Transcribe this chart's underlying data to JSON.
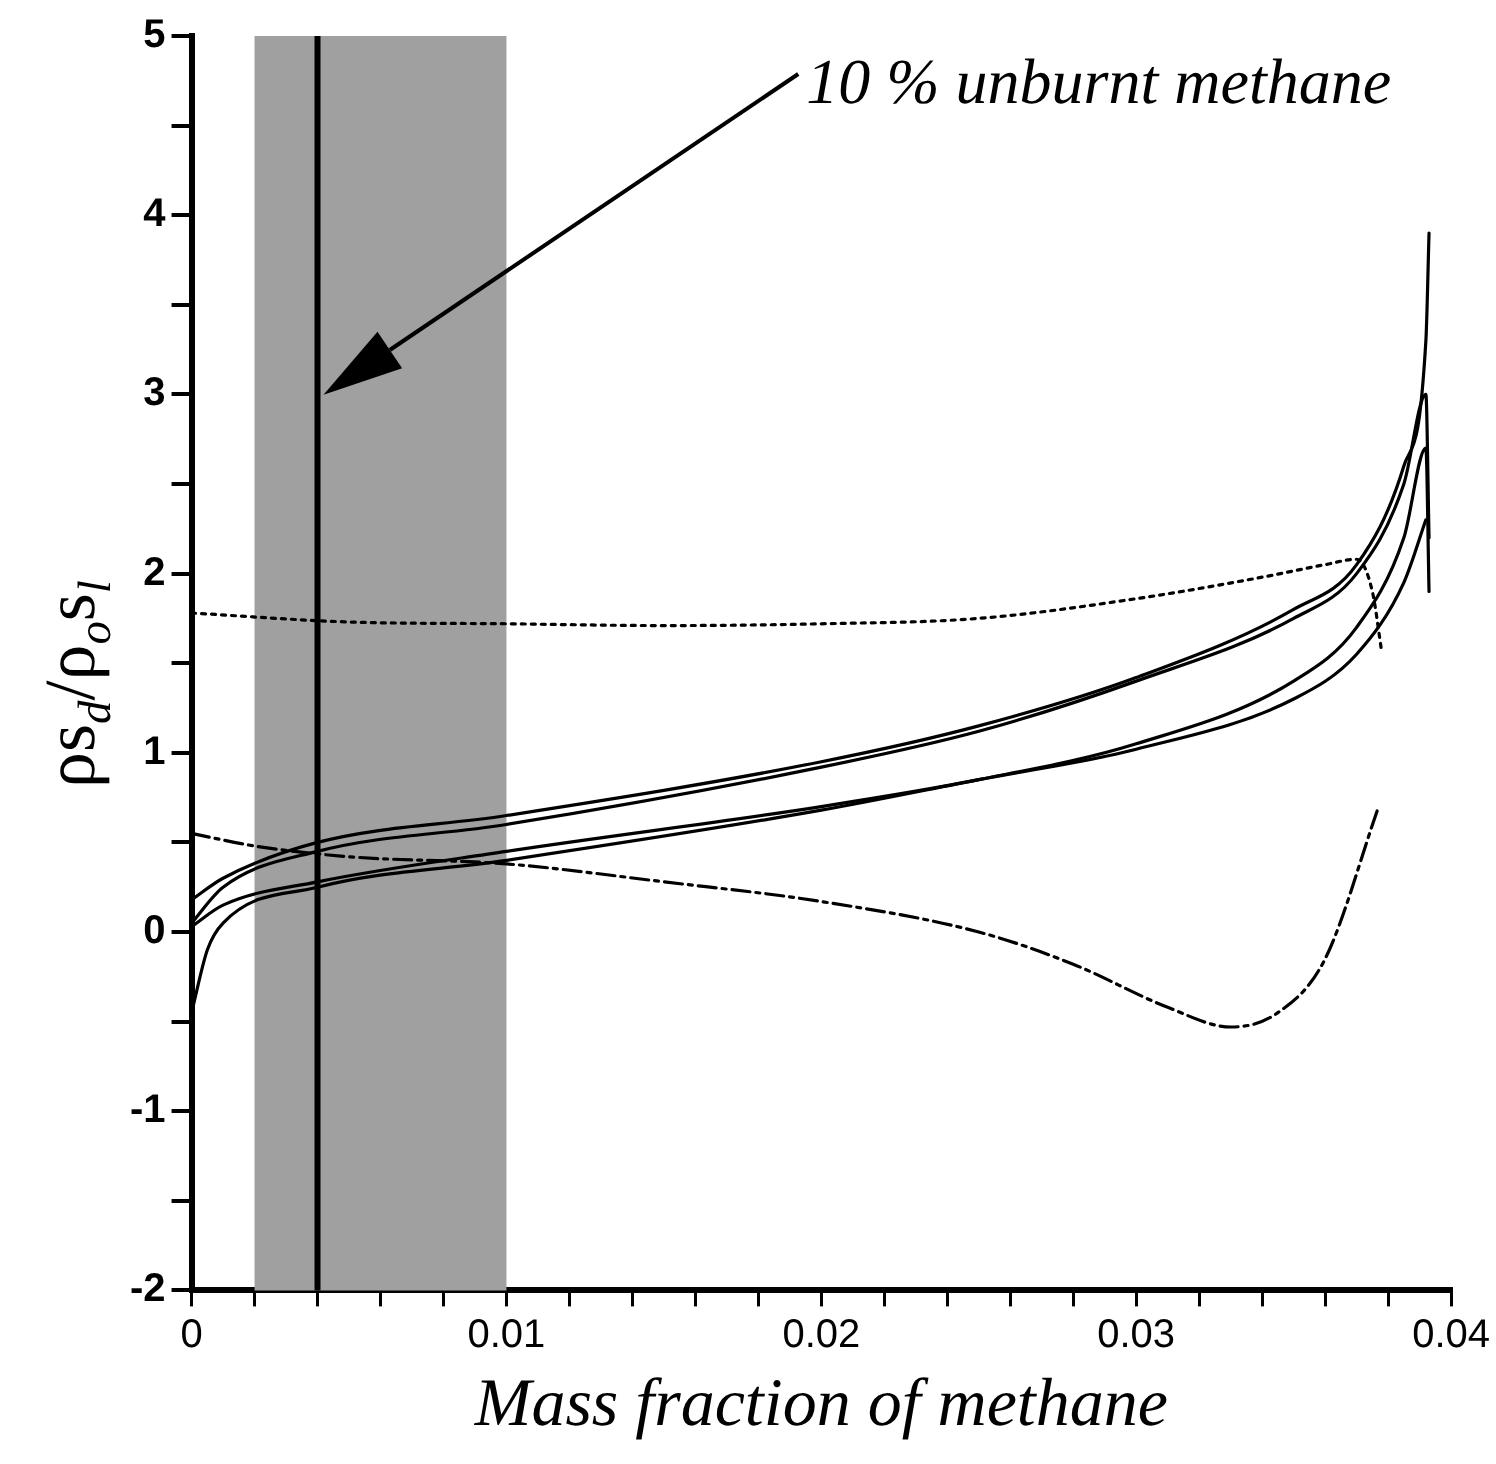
{
  "chart_data": {
    "type": "line",
    "xlabel": "Mass fraction of methane",
    "ylabel": "ρs$_{d}$/ρ$_{o}$s$_{l}$",
    "xlim": [
      0,
      0.04
    ],
    "ylim": [
      -2,
      5
    ],
    "xticks": [
      0,
      {
        "value": 0.002,
        "label": null
      },
      {
        "value": 0.004,
        "label": null
      },
      {
        "value": 0.006,
        "label": null
      },
      {
        "value": 0.008,
        "label": null
      },
      0.01,
      {
        "value": 0.012,
        "label": null
      },
      {
        "value": 0.014,
        "label": null
      },
      {
        "value": 0.016,
        "label": null
      },
      {
        "value": 0.018,
        "label": null
      },
      0.02,
      {
        "value": 0.022,
        "label": null
      },
      {
        "value": 0.024,
        "label": null
      },
      {
        "value": 0.026,
        "label": null
      },
      {
        "value": 0.028,
        "label": null
      },
      0.03,
      {
        "value": 0.032,
        "label": null
      },
      {
        "value": 0.034,
        "label": null
      },
      {
        "value": 0.036,
        "label": null
      },
      {
        "value": 0.038,
        "label": null
      },
      0.04
    ],
    "yticks": [
      -2,
      {
        "value": -1.5,
        "label": null
      },
      -1,
      {
        "value": -0.5,
        "label": null
      },
      0,
      {
        "value": 0.5,
        "label": null
      },
      1,
      {
        "value": 1.5,
        "label": null
      },
      2,
      {
        "value": 2.5,
        "label": null
      },
      3,
      {
        "value": 3.5,
        "label": null
      },
      4,
      {
        "value": 4.5,
        "label": null
      },
      5
    ],
    "grid": false,
    "legend": false,
    "marker": "none",
    "series": [
      {
        "color": "#000000",
        "line_style": "solid",
        "x": [
          0,
          0.001,
          0.004,
          0.01,
          0.02,
          0.025,
          0.03,
          0.035,
          0.037,
          0.0385,
          0.0392,
          0.0393
        ],
        "values": [
          0.18,
          0.3,
          0.5,
          0.65,
          0.95,
          1.15,
          1.42,
          1.8,
          2.05,
          2.6,
          3.3,
          3.9
        ]
      },
      {
        "color": "#000000",
        "line_style": "solid",
        "x": [
          0,
          0.001,
          0.004,
          0.01,
          0.02,
          0.025,
          0.03,
          0.035,
          0.037,
          0.0385,
          0.0392,
          0.0393
        ],
        "values": [
          0.05,
          0.25,
          0.45,
          0.6,
          0.92,
          1.12,
          1.4,
          1.75,
          2.0,
          2.5,
          3.0,
          2.2
        ]
      },
      {
        "color": "#000000",
        "line_style": "solid",
        "x": [
          0,
          0.001,
          0.004,
          0.01,
          0.02,
          0.025,
          0.03,
          0.035,
          0.037,
          0.0385,
          0.0392,
          0.0393
        ],
        "values": [
          0.03,
          0.15,
          0.28,
          0.45,
          0.7,
          0.85,
          1.05,
          1.4,
          1.7,
          2.2,
          2.7,
          1.9
        ]
      },
      {
        "color": "#000000",
        "line_style": "solid",
        "x": [
          0,
          0.0005,
          0.001,
          0.004,
          0.01,
          0.02,
          0.025,
          0.03,
          0.035,
          0.037,
          0.0385,
          0.0392
        ],
        "values": [
          -0.45,
          -0.1,
          0.05,
          0.25,
          0.4,
          0.68,
          0.85,
          1.02,
          1.3,
          1.55,
          1.95,
          2.3
        ]
      },
      {
        "color": "#000000",
        "line_style": "dotted",
        "x": [
          0,
          0.005,
          0.01,
          0.015,
          0.02,
          0.025,
          0.03,
          0.034,
          0.036,
          0.037,
          0.0375,
          0.0378
        ],
        "values": [
          1.78,
          1.73,
          1.72,
          1.71,
          1.72,
          1.75,
          1.86,
          1.98,
          2.05,
          2.08,
          1.9,
          1.56
        ]
      },
      {
        "color": "#000000",
        "line_style": "dashdot",
        "x": [
          0,
          0.002,
          0.005,
          0.01,
          0.015,
          0.02,
          0.025,
          0.028,
          0.031,
          0.033,
          0.0345,
          0.036,
          0.0377
        ],
        "values": [
          0.55,
          0.48,
          0.42,
          0.38,
          0.28,
          0.17,
          0.0,
          -0.18,
          -0.42,
          -0.53,
          -0.45,
          -0.15,
          0.7
        ]
      }
    ],
    "bands": [
      {
        "axis": "x",
        "from": 0.002,
        "to": 0.01,
        "color": "#a0a0a0"
      }
    ],
    "ref_lines": [
      {
        "axis": "x",
        "value": 0.004,
        "label": "10 % unburnt methane",
        "color": "#000000"
      }
    ]
  }
}
